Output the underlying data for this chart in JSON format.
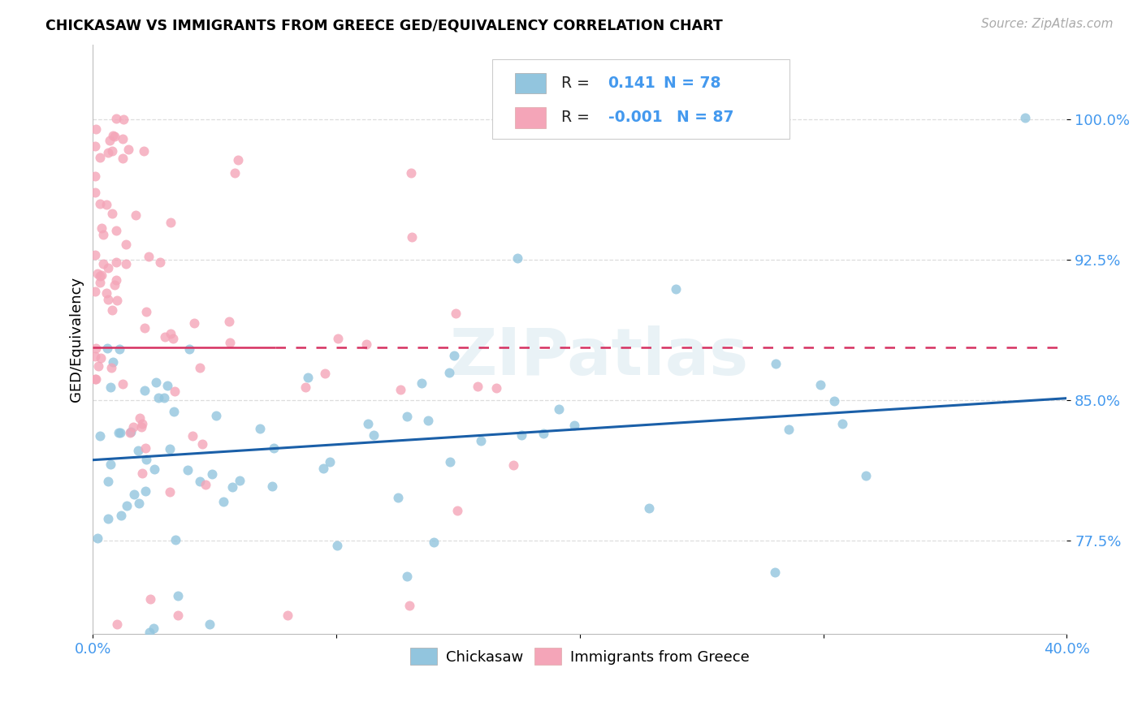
{
  "title": "CHICKASAW VS IMMIGRANTS FROM GREECE GED/EQUIVALENCY CORRELATION CHART",
  "source": "Source: ZipAtlas.com",
  "ylabel": "GED/Equivalency",
  "yticks": [
    0.775,
    0.85,
    0.925,
    1.0
  ],
  "ytick_labels": [
    "77.5%",
    "85.0%",
    "92.5%",
    "100.0%"
  ],
  "xmin": 0.0,
  "xmax": 0.4,
  "ymin": 0.725,
  "ymax": 1.04,
  "watermark_text": "ZIPatlas",
  "legend_label1": "R =",
  "legend_val1": "0.141",
  "legend_n1": "N = 78",
  "legend_label2": "R =",
  "legend_val2": "-0.001",
  "legend_n2": "N = 87",
  "color_blue": "#92c5de",
  "color_pink": "#f4a5b8",
  "color_line_blue": "#1a5fa8",
  "color_line_pink": "#d63060",
  "color_axis_blue": "#4499ee",
  "grid_color": "#dddddd",
  "background_color": "#ffffff",
  "trend_blue_x0": 0.0,
  "trend_blue_y0": 0.818,
  "trend_blue_x1": 0.4,
  "trend_blue_y1": 0.851,
  "trend_pink_y": 0.878,
  "trend_pink_solid_x1": 0.075
}
